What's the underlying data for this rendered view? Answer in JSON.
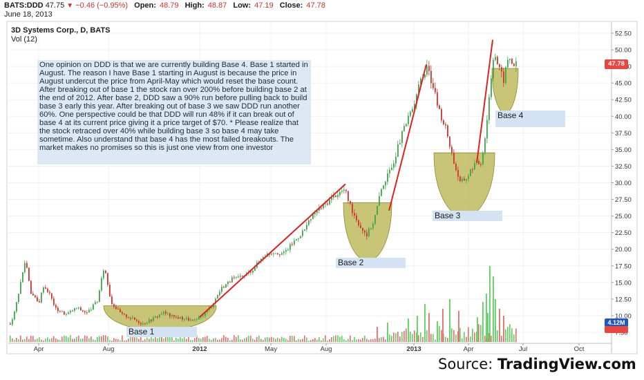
{
  "header": {
    "symbol": "BATS:DDD",
    "last": "47.75",
    "change": "−0.46 (−0.95%)",
    "open_label": "Open:",
    "open": "48.79",
    "high_label": "High:",
    "high": "48.87",
    "low_label": "Low:",
    "low": "47.19",
    "close_label": "Close:",
    "close": "47.78",
    "date": "June 18, 2013"
  },
  "chart_header": {
    "symbol_line": "3D Systems Corp., D, BATS",
    "volume_line": "Vol (12)"
  },
  "note": "One opinion on DDD is that we are currently building Base 4. Base 1 started in August. The reason I have Base 1 starting in August is because the price in August undercut the price from April-May which would reset the base count. After breaking out of base 1 the stock ran over 200% before building base 2 at the end of 2012. After base 2, DDD saw a 90% run before pulling back to build base 3 early this year. After breaking out of base 3 we saw DDD run another 60%. One perspective could be that DDD will run 48% if it can break out of base 4 at its current price giving it a price target of $70. * Please realize that the stock retraced over 40% while building base 3 so base 4 may take sometime. Also understand that base 4 has the most failed breakouts. The market makes no promises so this is just one view from one investor",
  "base_labels": [
    "Base 1",
    "Base 2",
    "Base 3",
    "Base 4"
  ],
  "price_tag": "47.78",
  "volume_tag": "4.12M",
  "source": {
    "prefix": "Source:",
    "brand": "TradingView.com"
  },
  "colors": {
    "up": "#3fa34d",
    "down": "#d0312d",
    "vol_up": "#5ccf5c",
    "vol_down": "#e86a6a",
    "trend": "#e02020",
    "base_fill": "#b5b14a",
    "grid": "#f0f0f0"
  },
  "chart_data": {
    "type": "candlestick",
    "y_axis": {
      "ticks": [
        "52.50",
        "50.00",
        "47.50",
        "45.00",
        "42.50",
        "40.00",
        "37.50",
        "35.00",
        "32.50",
        "30.00",
        "27.50",
        "25.00",
        "22.50",
        "20.00",
        "17.50",
        "15.00",
        "12.50",
        "10.00",
        "7.50"
      ],
      "ylim": [
        5,
        53.5
      ]
    },
    "x_axis": {
      "ticks": [
        "Apr",
        "Aug",
        "2012",
        "May",
        "Aug",
        "2013",
        "Apr",
        "Jul",
        "Oct"
      ],
      "tick_positions": [
        56,
        157,
        289,
        392,
        472,
        599,
        678,
        757,
        838
      ]
    },
    "price_anchors": [
      [
        14,
        8.8
      ],
      [
        20,
        10.5
      ],
      [
        30,
        15.5
      ],
      [
        36,
        18.5
      ],
      [
        44,
        13.5
      ],
      [
        55,
        11.8
      ],
      [
        62,
        14.5
      ],
      [
        70,
        13.5
      ],
      [
        80,
        11.0
      ],
      [
        95,
        10.2
      ],
      [
        110,
        11.2
      ],
      [
        125,
        10.4
      ],
      [
        140,
        12.2
      ],
      [
        150,
        17.5
      ],
      [
        160,
        12.0
      ],
      [
        175,
        10.2
      ],
      [
        190,
        9.6
      ],
      [
        205,
        8.8
      ],
      [
        220,
        9.5
      ],
      [
        235,
        10.5
      ],
      [
        250,
        9.8
      ],
      [
        265,
        9.6
      ],
      [
        280,
        9.2
      ],
      [
        290,
        9.8
      ],
      [
        305,
        11.5
      ],
      [
        320,
        14.2
      ],
      [
        335,
        15.5
      ],
      [
        350,
        15.8
      ],
      [
        365,
        17.0
      ],
      [
        380,
        19.0
      ],
      [
        395,
        19.6
      ],
      [
        410,
        19.4
      ],
      [
        425,
        21.2
      ],
      [
        440,
        23.0
      ],
      [
        455,
        25.5
      ],
      [
        470,
        26.8
      ],
      [
        485,
        28.2
      ],
      [
        498,
        29.0
      ],
      [
        508,
        26.0
      ],
      [
        520,
        23.5
      ],
      [
        530,
        22.2
      ],
      [
        540,
        24.2
      ],
      [
        552,
        29.5
      ],
      [
        565,
        32.0
      ],
      [
        580,
        37.0
      ],
      [
        595,
        41.0
      ],
      [
        608,
        45.5
      ],
      [
        618,
        47.2
      ],
      [
        626,
        44.5
      ],
      [
        634,
        41.0
      ],
      [
        645,
        38.0
      ],
      [
        655,
        33.5
      ],
      [
        665,
        30.0
      ],
      [
        675,
        30.8
      ],
      [
        685,
        32.8
      ],
      [
        695,
        33.0
      ],
      [
        702,
        37.5
      ],
      [
        708,
        44.0
      ],
      [
        714,
        50.0
      ],
      [
        720,
        47.5
      ],
      [
        728,
        45.5
      ],
      [
        735,
        49.0
      ],
      [
        742,
        47.8
      ],
      [
        747,
        47.8
      ]
    ],
    "volume_spikes": [
      [
        603,
        38,
        "up"
      ],
      [
        614,
        55,
        "up"
      ],
      [
        620,
        42,
        "down"
      ],
      [
        640,
        48,
        "down"
      ],
      [
        650,
        62,
        "up"
      ],
      [
        663,
        45,
        "down"
      ],
      [
        698,
        58,
        "up"
      ],
      [
        703,
        70,
        "up"
      ],
      [
        708,
        110,
        "up"
      ],
      [
        713,
        95,
        "up"
      ],
      [
        716,
        62,
        "up"
      ],
      [
        722,
        48,
        "down"
      ],
      [
        705,
        42,
        "up"
      ],
      [
        728,
        38,
        "down"
      ],
      [
        233,
        14,
        "down"
      ],
      [
        545,
        22,
        "down"
      ],
      [
        560,
        28,
        "up"
      ],
      [
        590,
        34,
        "up"
      ],
      [
        632,
        30,
        "up"
      ],
      [
        690,
        36,
        "up"
      ]
    ],
    "trend_lines": [
      [
        [
          289,
          9.8
        ],
        [
          500,
          29.8
        ]
      ],
      [
        [
          563,
          25.8
        ],
        [
          617,
          47.8
        ]
      ],
      [
        [
          690,
          33.0
        ],
        [
          713,
          51.5
        ]
      ]
    ],
    "bases": [
      {
        "label": "Base 1",
        "x1": 150,
        "x2": 313,
        "top": 11.5,
        "bottom": 8.6
      },
      {
        "label": "Base 2",
        "x1": 497,
        "x2": 567,
        "top": 27.0,
        "bottom": 20.2
      },
      {
        "label": "Base 3",
        "x1": 628,
        "x2": 716,
        "top": 34.5,
        "bottom": 27.0
      },
      {
        "label": "Base 4",
        "x1": 712,
        "x2": 750,
        "top": 47.2,
        "bottom": 42.0
      }
    ],
    "base_label_positions": []
  }
}
